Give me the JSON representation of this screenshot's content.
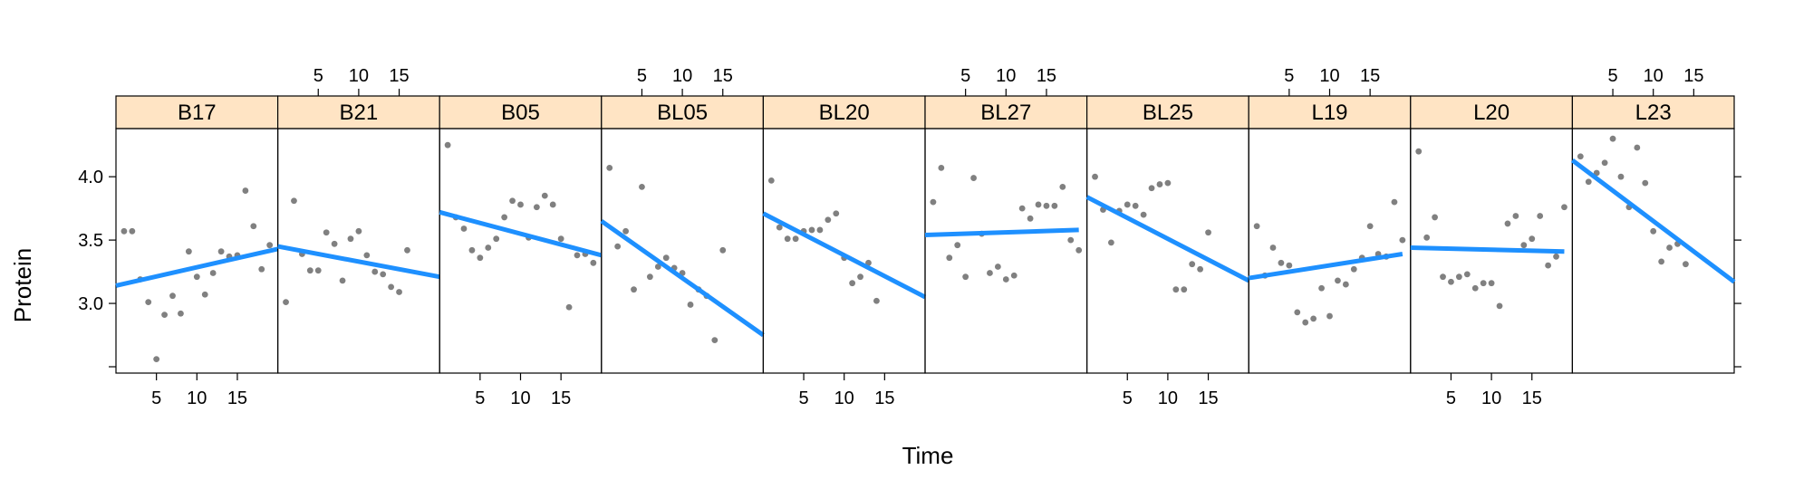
{
  "chart_data": {
    "type": "scatter",
    "layout": "trellis 10x1 panels with linear regression line per panel",
    "xlabel": "Time",
    "ylabel": "Protein",
    "xlim": [
      0,
      20
    ],
    "ylim": [
      2.45,
      4.38
    ],
    "x_ticks": [
      5,
      10,
      15
    ],
    "y_ticks": [
      3.0,
      3.5,
      4.0
    ],
    "y_tick_labels": [
      "3.0",
      "3.5",
      "4.0"
    ],
    "grid": false,
    "colors": {
      "points": "#808080",
      "fit_line": "#1e90ff",
      "strip_bg": "#ffe4c4",
      "frame": "#000000"
    },
    "panels": [
      {
        "label": "B17",
        "x": [
          1,
          2,
          3,
          4,
          5,
          6,
          7,
          8,
          9,
          10,
          11,
          12,
          13,
          14,
          15,
          16,
          17,
          18,
          19
        ],
        "y": [
          3.57,
          3.57,
          3.19,
          3.01,
          2.56,
          2.91,
          3.06,
          2.92,
          3.41,
          3.21,
          3.07,
          3.24,
          3.41,
          3.37,
          3.38,
          3.89,
          3.61,
          3.27,
          3.46
        ],
        "fit": [
          [
            0,
            3.14
          ],
          [
            20,
            3.43
          ]
        ]
      },
      {
        "label": "B21",
        "x": [
          1,
          2,
          3,
          4,
          5,
          6,
          7,
          8,
          9,
          10,
          11,
          12,
          13,
          14,
          15,
          16
        ],
        "y": [
          3.01,
          3.81,
          3.39,
          3.26,
          3.26,
          3.56,
          3.47,
          3.18,
          3.51,
          3.57,
          3.38,
          3.25,
          3.23,
          3.13,
          3.09,
          3.42
        ],
        "fit": [
          [
            0,
            3.45
          ],
          [
            20,
            3.21
          ]
        ]
      },
      {
        "label": "B05",
        "x": [
          1,
          2,
          3,
          4,
          5,
          6,
          7,
          8,
          9,
          10,
          11,
          12,
          13,
          14,
          15,
          16,
          17,
          18,
          19
        ],
        "y": [
          4.25,
          3.68,
          3.59,
          3.42,
          3.36,
          3.44,
          3.51,
          3.68,
          3.81,
          3.78,
          3.52,
          3.76,
          3.85,
          3.78,
          3.51,
          2.97,
          3.38,
          3.39,
          3.32
        ],
        "fit": [
          [
            0,
            3.72
          ],
          [
            20,
            3.38
          ]
        ]
      },
      {
        "label": "BL05",
        "x": [
          1,
          2,
          3,
          4,
          5,
          6,
          7,
          8,
          9,
          10,
          11,
          12,
          13,
          14,
          15
        ],
        "y": [
          4.07,
          3.45,
          3.57,
          3.11,
          3.92,
          3.21,
          3.29,
          3.36,
          3.28,
          3.24,
          2.99,
          3.11,
          3.06,
          2.71,
          3.42
        ],
        "fit": [
          [
            0,
            3.65
          ],
          [
            20,
            2.75
          ]
        ]
      },
      {
        "label": "BL20",
        "x": [
          1,
          2,
          3,
          4,
          5,
          6,
          7,
          8,
          9,
          10,
          11,
          12,
          13,
          14
        ],
        "y": [
          3.97,
          3.6,
          3.51,
          3.51,
          3.57,
          3.58,
          3.58,
          3.66,
          3.71,
          3.36,
          3.16,
          3.21,
          3.32,
          3.02
        ],
        "fit": [
          [
            0,
            3.71
          ],
          [
            20,
            3.05
          ]
        ]
      },
      {
        "label": "BL27",
        "x": [
          1,
          2,
          3,
          4,
          5,
          6,
          7,
          8,
          9,
          10,
          11,
          12,
          13,
          14,
          15,
          16,
          17,
          18,
          19
        ],
        "y": [
          3.8,
          4.07,
          3.36,
          3.46,
          3.21,
          3.99,
          3.55,
          3.24,
          3.29,
          3.19,
          3.22,
          3.75,
          3.67,
          3.78,
          3.77,
          3.77,
          3.92,
          3.5,
          3.42
        ],
        "fit": [
          [
            0,
            3.54
          ],
          [
            19,
            3.58
          ]
        ]
      },
      {
        "label": "BL25",
        "x": [
          1,
          2,
          3,
          4,
          5,
          6,
          7,
          8,
          9,
          10,
          11,
          12,
          13,
          14,
          15
        ],
        "y": [
          4.0,
          3.74,
          3.48,
          3.73,
          3.78,
          3.77,
          3.7,
          3.91,
          3.94,
          3.95,
          3.11,
          3.11,
          3.31,
          3.27,
          3.56
        ],
        "fit": [
          [
            0,
            3.84
          ],
          [
            20,
            3.18
          ]
        ]
      },
      {
        "label": "L19",
        "x": [
          1,
          2,
          3,
          4,
          5,
          6,
          7,
          8,
          9,
          10,
          11,
          12,
          13,
          14,
          15,
          16,
          17,
          18,
          19
        ],
        "y": [
          3.61,
          3.22,
          3.44,
          3.32,
          3.3,
          2.93,
          2.85,
          2.88,
          3.12,
          2.9,
          3.18,
          3.15,
          3.27,
          3.36,
          3.61,
          3.39,
          3.37,
          3.8,
          3.5
        ],
        "fit": [
          [
            0,
            3.2
          ],
          [
            19,
            3.39
          ]
        ]
      },
      {
        "label": "L20",
        "x": [
          1,
          2,
          3,
          4,
          5,
          6,
          7,
          8,
          9,
          10,
          11,
          12,
          13,
          14,
          15,
          16,
          17,
          18,
          19
        ],
        "y": [
          4.2,
          3.52,
          3.68,
          3.21,
          3.17,
          3.21,
          3.23,
          3.12,
          3.16,
          3.16,
          2.98,
          3.63,
          3.69,
          3.46,
          3.51,
          3.69,
          3.3,
          3.37,
          3.76
        ],
        "fit": [
          [
            0,
            3.44
          ],
          [
            19,
            3.41
          ]
        ]
      },
      {
        "label": "L23",
        "x": [
          1,
          2,
          3,
          4,
          5,
          6,
          7,
          8,
          9,
          10,
          11,
          12,
          13,
          14
        ],
        "y": [
          4.16,
          3.96,
          4.03,
          4.11,
          4.3,
          4.0,
          3.76,
          4.23,
          3.95,
          3.57,
          3.33,
          3.44,
          3.47,
          3.31
        ],
        "fit": [
          [
            0,
            4.13
          ],
          [
            20,
            3.17
          ]
        ]
      }
    ]
  }
}
